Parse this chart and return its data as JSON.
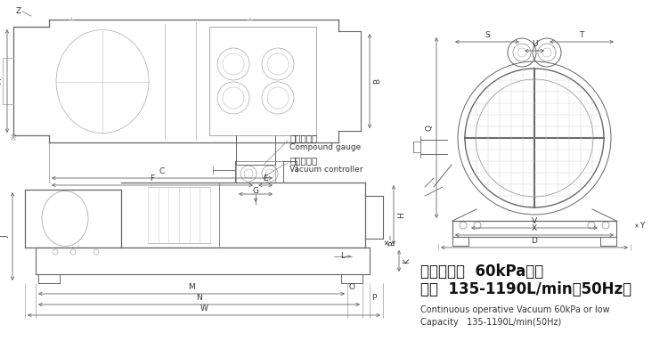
{
  "bg_color": "#ffffff",
  "lc": "#666666",
  "tc": "#333333",
  "lc_dark": "#444444",
  "dim_font": 6.5,
  "label_font": 7.5,
  "cn_font": 12,
  "en_font": 7,
  "title_cn_line1": "常见真空度  60kPa以下",
  "title_cn_line2": "流量  135-1190L/min（50Hz）",
  "title_en_line1": "Continuous operative Vacuum 60kPa or low",
  "title_en_line2": "Capacity   135-1190L/min(50Hz)",
  "label_vg_cn": "真空压力表",
  "label_vg_en": "Compound gauge",
  "label_vc_cn": "真空控制阀",
  "label_vc_en": "Vacuum controller"
}
